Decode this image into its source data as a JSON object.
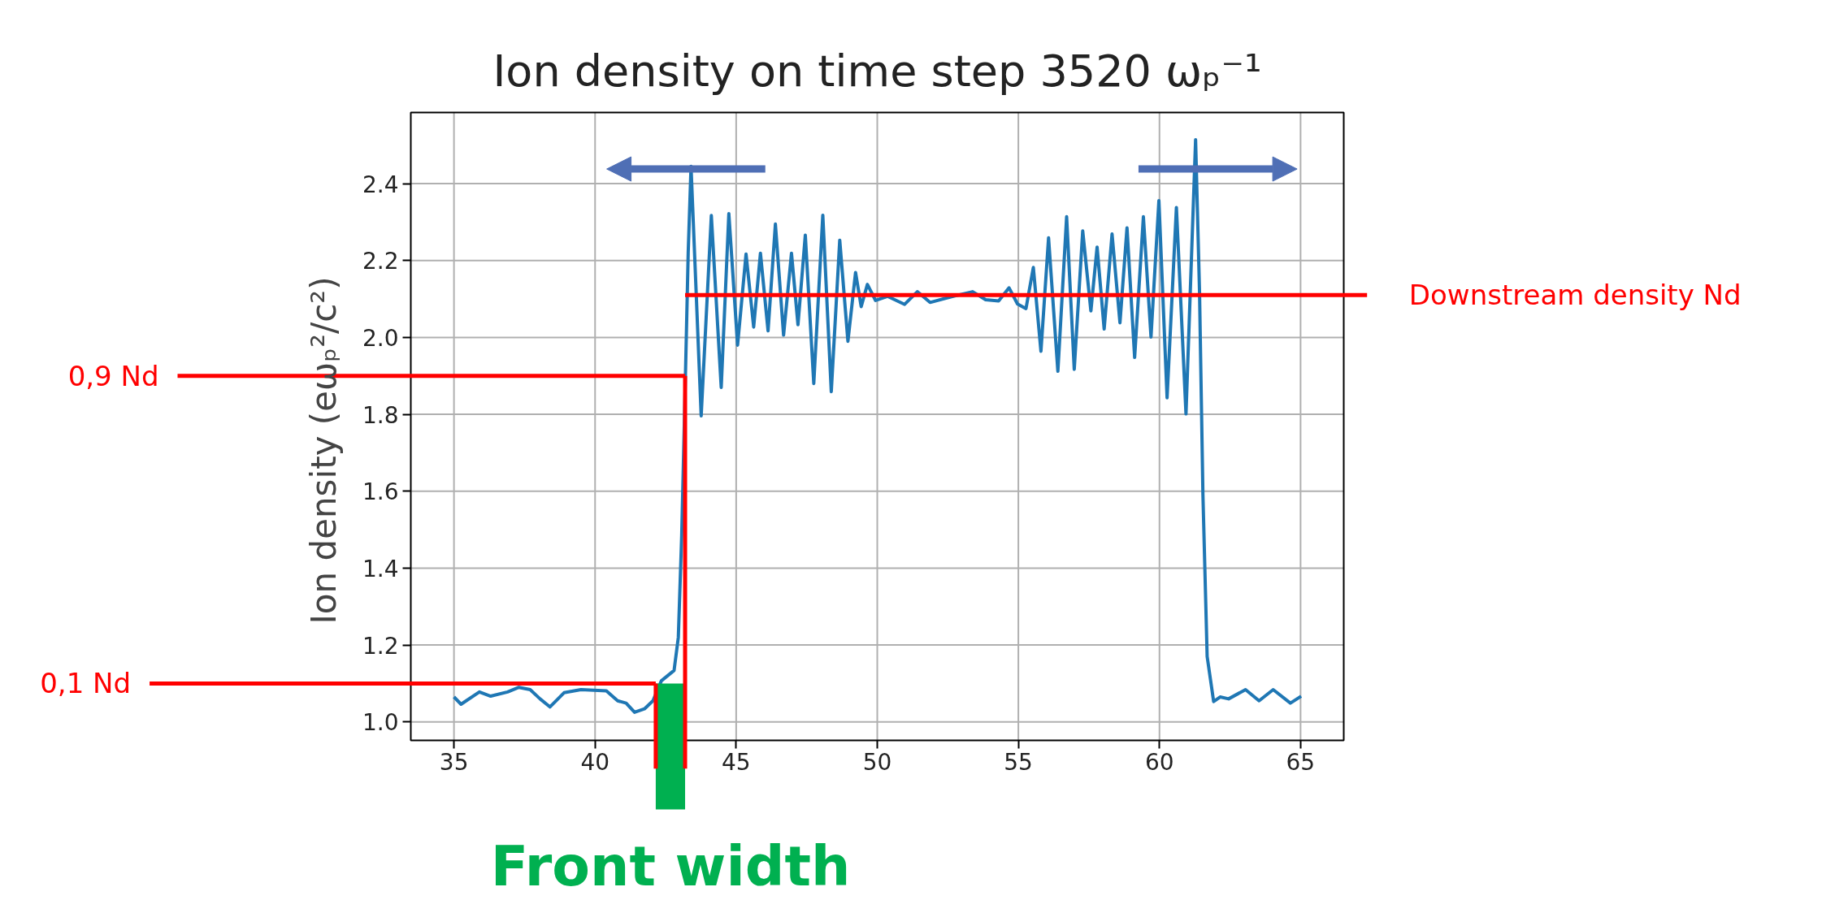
{
  "chart_data": {
    "type": "line",
    "title": "Ion density on time step 3520 ωₚ⁻¹",
    "ylabel": "Ion density (eωₚ²/c²)",
    "x": [
      35,
      35.25,
      35.9,
      36.3,
      36.9,
      37.3,
      37.7,
      38.05,
      38.4,
      38.9,
      39.5,
      40.4,
      40.8,
      41.1,
      41.4,
      41.75,
      42.05,
      42.35,
      42.8,
      42.95,
      43.07,
      43.2,
      43.3,
      43.4,
      43.76,
      44.12,
      44.47,
      44.74,
      45.05,
      45.35,
      45.62,
      45.86,
      46.13,
      46.39,
      46.68,
      46.96,
      47.19,
      47.45,
      47.75,
      48.07,
      48.37,
      48.67,
      48.96,
      49.23,
      49.43,
      49.65,
      49.94,
      50.36,
      50.97,
      51.42,
      51.87,
      52.63,
      53.38,
      53.84,
      54.3,
      54.67,
      54.97,
      55.27,
      55.53,
      55.8,
      56.07,
      56.4,
      56.71,
      56.98,
      57.28,
      57.57,
      57.79,
      58.04,
      58.32,
      58.6,
      58.85,
      59.12,
      59.43,
      59.7,
      59.98,
      60.27,
      60.6,
      60.94,
      61.28,
      61.42,
      61.54,
      61.69,
      61.92,
      62.15,
      62.45,
      63.05,
      63.53,
      64.03,
      64.64,
      65.02
    ],
    "series": [
      {
        "color": "#1f77b4",
        "values": [
          1.065,
          1.046,
          1.078,
          1.067,
          1.078,
          1.09,
          1.084,
          1.06,
          1.039,
          1.076,
          1.084,
          1.081,
          1.055,
          1.049,
          1.025,
          1.034,
          1.055,
          1.107,
          1.134,
          1.22,
          1.486,
          1.894,
          2.22,
          2.445,
          1.796,
          2.317,
          1.87,
          2.322,
          1.98,
          2.217,
          2.027,
          2.219,
          2.017,
          2.295,
          2.006,
          2.219,
          2.033,
          2.266,
          1.88,
          2.318,
          1.859,
          2.253,
          1.99,
          2.169,
          2.08,
          2.138,
          2.096,
          2.107,
          2.086,
          2.119,
          2.091,
          2.106,
          2.119,
          2.098,
          2.095,
          2.129,
          2.087,
          2.075,
          2.182,
          1.964,
          2.259,
          1.912,
          2.314,
          1.917,
          2.277,
          2.069,
          2.235,
          2.022,
          2.269,
          2.038,
          2.285,
          1.948,
          2.314,
          2.001,
          2.356,
          1.843,
          2.338,
          1.801,
          2.514,
          2.117,
          1.591,
          1.17,
          1.053,
          1.065,
          1.06,
          1.084,
          1.055,
          1.084,
          1.049,
          1.067
        ]
      }
    ],
    "xlim": [
      33.47,
      66.53
    ],
    "ylim": [
      0.952,
      2.585
    ],
    "xticks": [
      35,
      40,
      45,
      50,
      55,
      60,
      65
    ],
    "yticks": [
      {
        "value": 1.0,
        "label": "1.0"
      },
      {
        "value": 1.2,
        "label": "1.2"
      },
      {
        "value": 1.4,
        "label": "1.4"
      },
      {
        "value": 1.6,
        "label": "1.6"
      },
      {
        "value": 1.8,
        "label": "1.8"
      },
      {
        "value": 2.0,
        "label": "2.0"
      },
      {
        "value": 2.2,
        "label": "2.2"
      },
      {
        "value": 2.4,
        "label": "2.4"
      }
    ],
    "grid": true,
    "ref_lines": [
      {
        "axis": "y",
        "value": 2.11,
        "label": "Downstream density Nd",
        "color": "#ff0000"
      },
      {
        "axis": "y",
        "value": 1.9,
        "label": "0,9 Nd",
        "color": "#ff0000"
      },
      {
        "axis": "y",
        "value": 1.1,
        "label": "0,1 Nd",
        "color": "#ff0000"
      },
      {
        "axis": "x",
        "value": 42.15,
        "color": "#ff0000"
      },
      {
        "axis": "x",
        "value": 43.19,
        "color": "#ff0000"
      }
    ],
    "bands": [
      {
        "axis": "x",
        "from": 42.15,
        "to": 43.19,
        "label": "Front width",
        "color": "#00b050"
      }
    ]
  }
}
